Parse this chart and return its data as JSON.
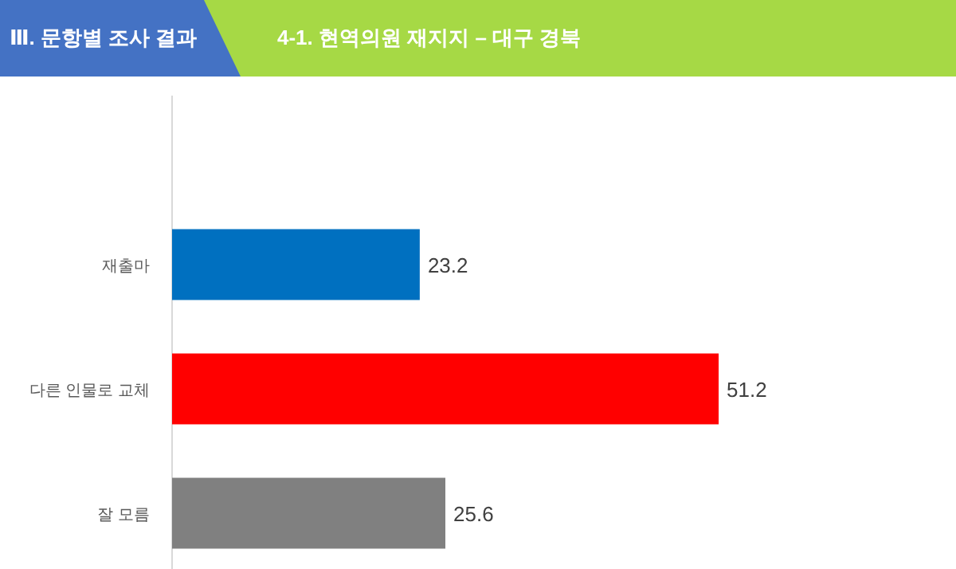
{
  "chart_data": {
    "type": "bar",
    "orientation": "horizontal",
    "relative": false,
    "subtitle": "Ⅲ. 문항별 조사 결과",
    "title": "4-1. 현역의원 재지지 – 대구 경북",
    "categories": [
      "재출마",
      "다른 인물로 교체",
      "잘 모름"
    ],
    "values": [
      23.2,
      51.2,
      25.6
    ],
    "colors": [
      "#0070c0",
      "#ff0000",
      "#808080"
    ],
    "data_labels": true
  }
}
